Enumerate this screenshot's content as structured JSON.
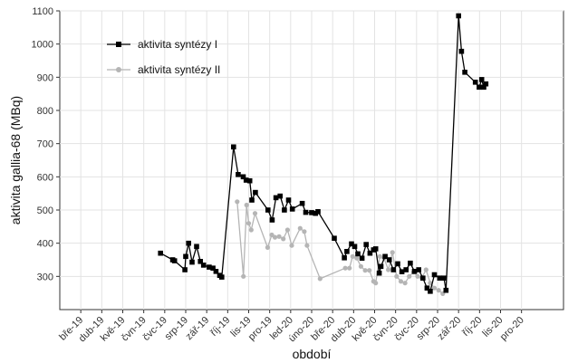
{
  "chart_data": {
    "type": "line",
    "xlabel": "období",
    "ylabel": "aktivita gallia-68 (MBq)",
    "ylim": [
      200,
      1100
    ],
    "y_ticks": [
      300,
      400,
      500,
      600,
      700,
      800,
      900,
      1000,
      1100
    ],
    "x_range": [
      0,
      24
    ],
    "categories": [
      "bře-19",
      "dub-19",
      "kvě-19",
      "čvn-19",
      "čvc-19",
      "srp-19",
      "zář-19",
      "říj-19",
      "lis-19",
      "pro-19",
      "led-20",
      "úno-20",
      "bře-20",
      "dub-20",
      "kvě-20",
      "čvn-20",
      "čvc-20",
      "srp-20",
      "zář-20",
      "říj-20",
      "lis-20",
      "pro-20"
    ],
    "grid": true,
    "legend_position": "top-left",
    "series": [
      {
        "name": "aktivita syntézy I",
        "color": "#000000",
        "marker": "square",
        "points": [
          [
            4.8,
            370
          ],
          [
            5.38,
            350
          ],
          [
            5.47,
            347
          ],
          [
            5.96,
            320
          ],
          [
            6.0,
            360
          ],
          [
            6.14,
            400
          ],
          [
            6.3,
            343
          ],
          [
            6.52,
            390
          ],
          [
            6.7,
            345
          ],
          [
            6.85,
            334
          ],
          [
            7.12,
            328
          ],
          [
            7.3,
            325
          ],
          [
            7.44,
            315
          ],
          [
            7.62,
            303
          ],
          [
            7.72,
            298
          ],
          [
            8.28,
            690
          ],
          [
            8.5,
            607
          ],
          [
            8.74,
            600
          ],
          [
            8.88,
            590
          ],
          [
            9.05,
            588
          ],
          [
            9.15,
            530
          ],
          [
            9.32,
            553
          ],
          [
            9.92,
            500
          ],
          [
            10.12,
            470
          ],
          [
            10.3,
            537
          ],
          [
            10.5,
            542
          ],
          [
            10.7,
            500
          ],
          [
            10.9,
            530
          ],
          [
            11.08,
            503
          ],
          [
            11.55,
            520
          ],
          [
            11.72,
            493
          ],
          [
            12.0,
            492
          ],
          [
            12.18,
            490
          ],
          [
            12.3,
            495
          ],
          [
            13.08,
            415
          ],
          [
            13.56,
            356
          ],
          [
            13.68,
            375
          ],
          [
            13.9,
            398
          ],
          [
            14.05,
            390
          ],
          [
            14.2,
            368
          ],
          [
            14.4,
            355
          ],
          [
            14.6,
            396
          ],
          [
            14.78,
            370
          ],
          [
            14.95,
            380
          ],
          [
            15.05,
            383
          ],
          [
            15.22,
            310
          ],
          [
            15.3,
            330
          ],
          [
            15.5,
            360
          ],
          [
            15.7,
            350
          ],
          [
            15.9,
            320
          ],
          [
            16.1,
            338
          ],
          [
            16.3,
            314
          ],
          [
            16.5,
            320
          ],
          [
            16.7,
            340
          ],
          [
            16.9,
            315
          ],
          [
            17.1,
            320
          ],
          [
            17.3,
            295
          ],
          [
            17.5,
            265
          ],
          [
            17.65,
            255
          ],
          [
            17.85,
            305
          ],
          [
            18.1,
            295
          ],
          [
            18.3,
            295
          ],
          [
            18.4,
            258
          ],
          [
            19.0,
            1085
          ],
          [
            19.14,
            978
          ],
          [
            19.3,
            915
          ],
          [
            19.8,
            885
          ],
          [
            19.98,
            870
          ],
          [
            20.1,
            893
          ],
          [
            20.2,
            870
          ],
          [
            20.3,
            880
          ]
        ]
      },
      {
        "name": "aktivita syntézy II",
        "color": "#b5b5b5",
        "marker": "circle",
        "points": [
          [
            8.45,
            525
          ],
          [
            8.75,
            300
          ],
          [
            8.9,
            515
          ],
          [
            9.0,
            460
          ],
          [
            9.12,
            440
          ],
          [
            9.3,
            490
          ],
          [
            9.9,
            387
          ],
          [
            10.1,
            425
          ],
          [
            10.25,
            418
          ],
          [
            10.45,
            420
          ],
          [
            10.65,
            413
          ],
          [
            10.85,
            440
          ],
          [
            11.05,
            393
          ],
          [
            11.45,
            445
          ],
          [
            11.65,
            435
          ],
          [
            11.78,
            393
          ],
          [
            12.4,
            293
          ],
          [
            13.6,
            325
          ],
          [
            13.8,
            325
          ],
          [
            13.95,
            360
          ],
          [
            14.15,
            355
          ],
          [
            14.35,
            330
          ],
          [
            14.55,
            318
          ],
          [
            14.75,
            318
          ],
          [
            14.95,
            285
          ],
          [
            15.05,
            280
          ],
          [
            15.25,
            360
          ],
          [
            15.45,
            355
          ],
          [
            15.65,
            320
          ],
          [
            15.85,
            372
          ],
          [
            16.05,
            300
          ],
          [
            16.25,
            285
          ],
          [
            16.45,
            280
          ],
          [
            16.65,
            300
          ],
          [
            16.85,
            313
          ],
          [
            17.05,
            300
          ],
          [
            17.25,
            296
          ],
          [
            17.45,
            320
          ],
          [
            17.65,
            280
          ],
          [
            17.85,
            265
          ],
          [
            18.05,
            258
          ],
          [
            18.25,
            248
          ]
        ]
      }
    ]
  }
}
